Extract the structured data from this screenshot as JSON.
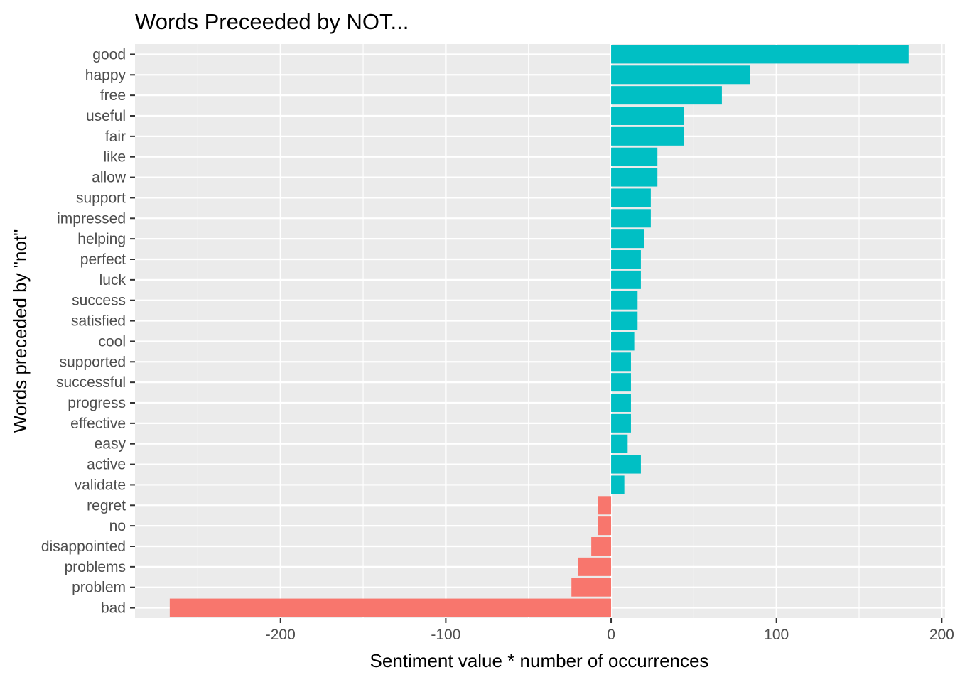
{
  "chart_data": {
    "type": "bar",
    "orientation": "horizontal",
    "title": "Words Preceeded by NOT...",
    "xlabel": "Sentiment value * number of occurrences",
    "ylabel": "Words preceded by \"not\"",
    "xlim": [
      -288,
      202
    ],
    "x_ticks": [
      -200,
      -100,
      0,
      100,
      200
    ],
    "x_tick_labels": [
      "-200",
      "-100",
      "0",
      "100",
      "200"
    ],
    "grid": true,
    "legend": "none",
    "colors": {
      "positive": "#00BFC4",
      "negative": "#F8766D",
      "panel": "#EBEBEB",
      "grid": "#FFFFFF"
    },
    "categories": [
      "good",
      "happy",
      "free",
      "useful",
      "fair",
      "like",
      "allow",
      "support",
      "impressed",
      "helping",
      "perfect",
      "luck",
      "success",
      "satisfied",
      "cool",
      "supported",
      "successful",
      "progress",
      "effective",
      "easy",
      "active",
      "validate",
      "regret",
      "no",
      "disappointed",
      "problems",
      "problem",
      "bad"
    ],
    "values": [
      180,
      84,
      67,
      44,
      44,
      28,
      28,
      24,
      24,
      20,
      18,
      18,
      16,
      16,
      14,
      12,
      12,
      12,
      12,
      10,
      18,
      8,
      -8,
      -8,
      -12,
      -20,
      -24,
      -267
    ]
  }
}
